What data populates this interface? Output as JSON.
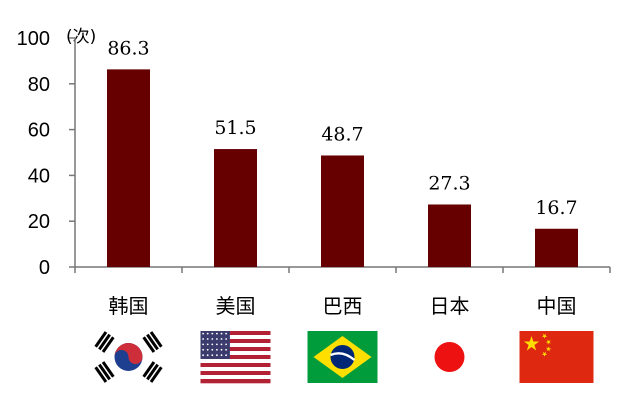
{
  "chart_data": {
    "type": "bar",
    "unit": "(次)",
    "categories": [
      "韩国",
      "美国",
      "巴西",
      "日本",
      "中国"
    ],
    "values": [
      86.3,
      51.5,
      48.7,
      27.3,
      16.7
    ],
    "value_labels": [
      "86.3",
      "51.5",
      "48.7",
      "27.3",
      "16.7"
    ],
    "ylim": [
      0,
      100
    ],
    "yticks": [
      0,
      20,
      40,
      60,
      80,
      100
    ],
    "grid": false,
    "legend": "none",
    "bar_color": "#660000",
    "flags": [
      "south-korea-flag",
      "usa-flag",
      "brazil-flag",
      "japan-flag",
      "china-flag"
    ]
  }
}
